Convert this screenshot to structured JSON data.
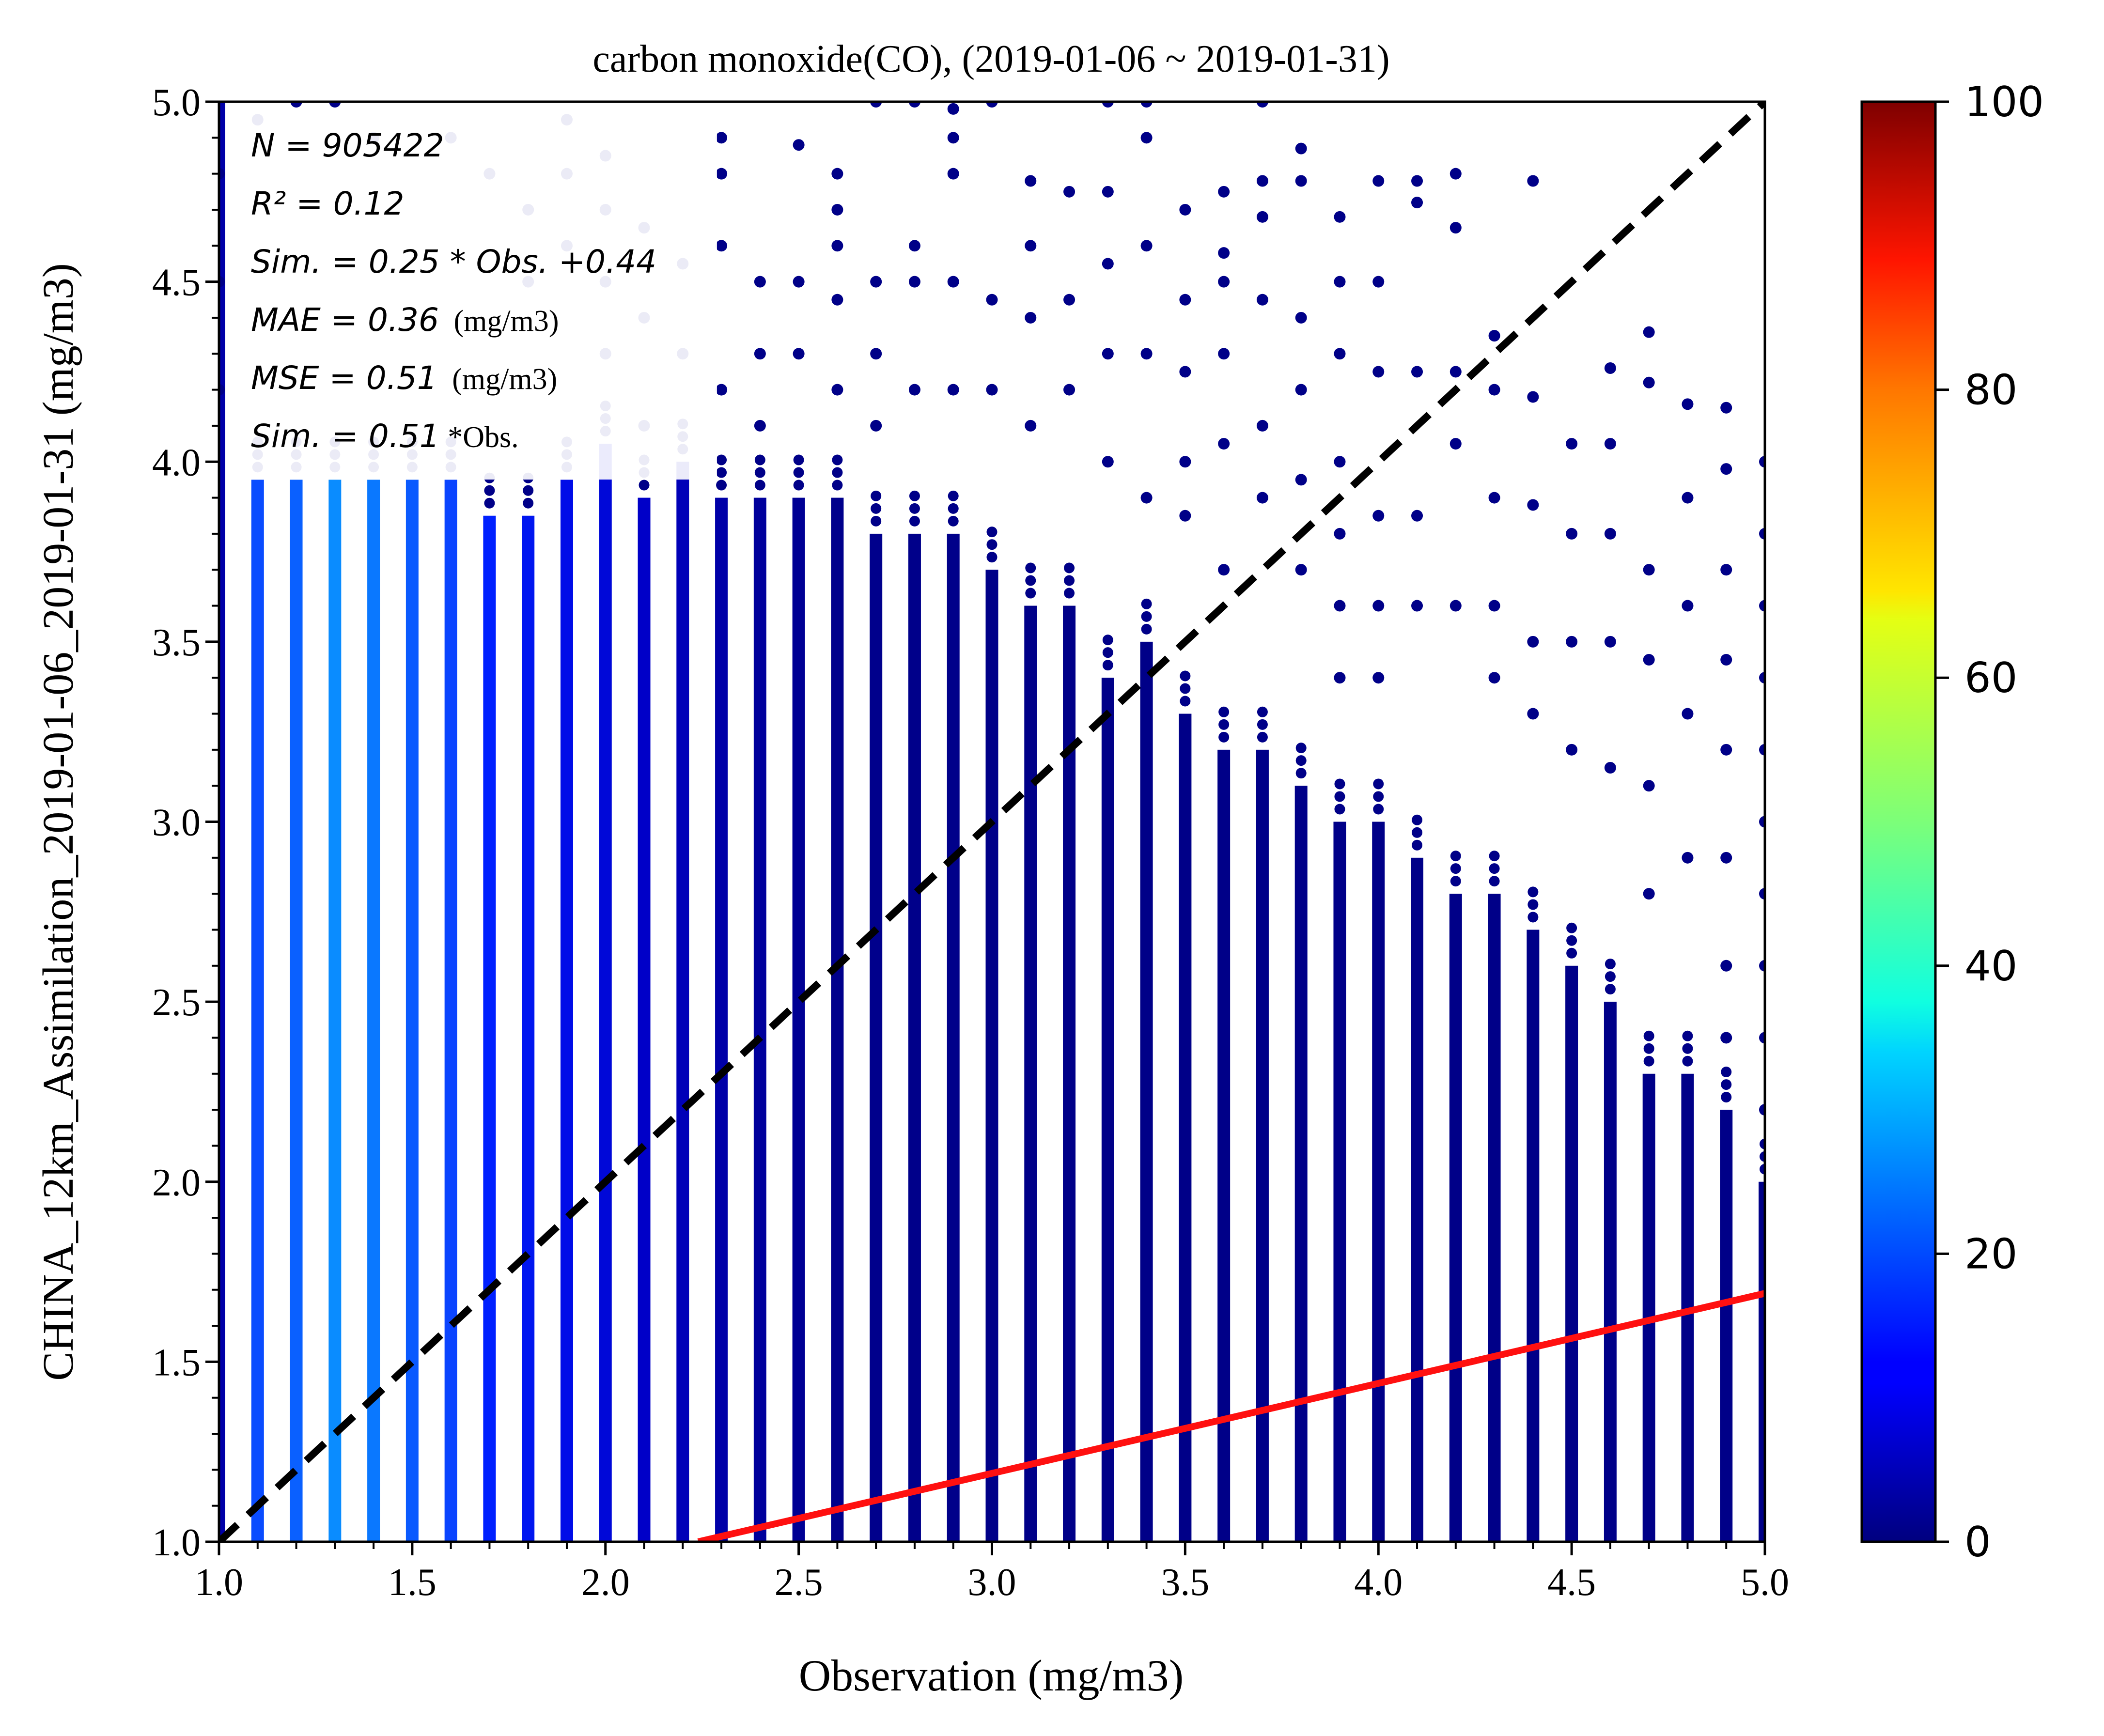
{
  "chart_data": {
    "type": "scatter",
    "title": "carbon monoxide(CO), (2019-01-06 ~ 2019-01-31)",
    "xlabel": "Observation (mg/m3)",
    "ylabel": "CHINA_12km_Assimilation_2019-01-06_2019-01-31 (mg/m3)",
    "xlim": [
      1.0,
      5.0
    ],
    "ylim": [
      1.0,
      5.0
    ],
    "x_ticks": [
      "1.0",
      "1.5",
      "2.0",
      "2.5",
      "3.0",
      "3.5",
      "4.0",
      "4.5",
      "5.0"
    ],
    "y_ticks": [
      "1.0",
      "1.5",
      "2.0",
      "2.5",
      "3.0",
      "3.5",
      "4.0",
      "4.5",
      "5.0"
    ],
    "grid": false,
    "stats": {
      "n": "N = 905422",
      "r2": "R² = 0.12",
      "fit": "Sim. = 0.25 * Obs. +0.44",
      "mae_label": "MAE = 0.36",
      "mae_unit": "(mg/m3)",
      "mse_label": "MSE = 0.51",
      "mse_unit": "(mg/m3)",
      "ratio_label": "Sim. = 0.51",
      "ratio_unit": "*Obs."
    },
    "reference_line": {
      "style": "dashed",
      "color": "#000000",
      "from": [
        1.0,
        1.0
      ],
      "to": [
        5.0,
        5.0
      ]
    },
    "fit_line": {
      "color": "#ff1010",
      "slope": 0.25,
      "intercept": 0.44
    },
    "colorbar": {
      "min": 0,
      "max": 100,
      "ticks": [
        "0",
        "20",
        "40",
        "60",
        "80",
        "100"
      ],
      "colormap": "jet"
    },
    "columns": [
      {
        "x": 1.0,
        "dense_top": 5.0,
        "color": "#0000a8"
      },
      {
        "x": 1.1,
        "dense_top": 3.95,
        "color": "#0a4cff"
      },
      {
        "x": 1.2,
        "dense_top": 3.95,
        "color": "#0a60ff"
      },
      {
        "x": 1.3,
        "dense_top": 3.95,
        "color": "#0a8cff"
      },
      {
        "x": 1.4,
        "dense_top": 3.95,
        "color": "#0a78ff"
      },
      {
        "x": 1.5,
        "dense_top": 3.95,
        "color": "#0a5aff"
      },
      {
        "x": 1.6,
        "dense_top": 3.95,
        "color": "#0a44ff"
      },
      {
        "x": 1.7,
        "dense_top": 3.85,
        "color": "#0020ff"
      },
      {
        "x": 1.8,
        "dense_top": 3.85,
        "color": "#0016f0"
      },
      {
        "x": 1.9,
        "dense_top": 3.95,
        "color": "#000ce8"
      },
      {
        "x": 2.0,
        "dense_top": 4.05,
        "color": "#0008d8"
      },
      {
        "x": 2.1,
        "dense_top": 3.9,
        "color": "#0000c8"
      },
      {
        "x": 2.2,
        "dense_top": 4.0,
        "color": "#0000b8"
      },
      {
        "x": 2.3,
        "dense_top": 3.9,
        "color": "#0000a8"
      },
      {
        "x": 2.4,
        "dense_top": 3.9,
        "color": "#00009c"
      },
      {
        "x": 2.5,
        "dense_top": 3.9,
        "color": "#000094"
      },
      {
        "x": 2.6,
        "dense_top": 3.9,
        "color": "#00008c"
      },
      {
        "x": 2.7,
        "dense_top": 3.8,
        "color": "#00008c"
      },
      {
        "x": 2.8,
        "dense_top": 3.8,
        "color": "#00008a"
      },
      {
        "x": 2.9,
        "dense_top": 3.8,
        "color": "#00008a"
      },
      {
        "x": 3.0,
        "dense_top": 3.7,
        "color": "#000088"
      },
      {
        "x": 3.1,
        "dense_top": 3.6,
        "color": "#000088"
      },
      {
        "x": 3.2,
        "dense_top": 3.6,
        "color": "#000088"
      },
      {
        "x": 3.3,
        "dense_top": 3.4,
        "color": "#000088"
      },
      {
        "x": 3.4,
        "dense_top": 3.5,
        "color": "#000088"
      },
      {
        "x": 3.5,
        "dense_top": 3.3,
        "color": "#000088"
      },
      {
        "x": 3.6,
        "dense_top": 3.2,
        "color": "#000088"
      },
      {
        "x": 3.7,
        "dense_top": 3.2,
        "color": "#000088"
      },
      {
        "x": 3.8,
        "dense_top": 3.1,
        "color": "#000088"
      },
      {
        "x": 3.9,
        "dense_top": 3.0,
        "color": "#000088"
      },
      {
        "x": 4.0,
        "dense_top": 3.0,
        "color": "#000088"
      },
      {
        "x": 4.1,
        "dense_top": 2.9,
        "color": "#000088"
      },
      {
        "x": 4.2,
        "dense_top": 2.8,
        "color": "#000088"
      },
      {
        "x": 4.3,
        "dense_top": 2.8,
        "color": "#000088"
      },
      {
        "x": 4.4,
        "dense_top": 2.7,
        "color": "#000088"
      },
      {
        "x": 4.5,
        "dense_top": 2.6,
        "color": "#000088"
      },
      {
        "x": 4.6,
        "dense_top": 2.5,
        "color": "#000088"
      },
      {
        "x": 4.7,
        "dense_top": 2.3,
        "color": "#000088"
      },
      {
        "x": 4.8,
        "dense_top": 2.3,
        "color": "#000088"
      },
      {
        "x": 4.9,
        "dense_top": 2.2,
        "color": "#000088"
      },
      {
        "x": 5.0,
        "dense_top": 2.0,
        "color": "#000088"
      }
    ],
    "scattered_points": [
      [
        1.0,
        4.2
      ],
      [
        1.0,
        4.5
      ],
      [
        1.0,
        4.8
      ],
      [
        1.1,
        4.95
      ],
      [
        1.2,
        5.0
      ],
      [
        1.3,
        5.0
      ],
      [
        1.4,
        4.9
      ],
      [
        1.6,
        4.9
      ],
      [
        1.7,
        4.8
      ],
      [
        1.8,
        4.7
      ],
      [
        1.8,
        4.5
      ],
      [
        1.9,
        4.95
      ],
      [
        1.9,
        4.8
      ],
      [
        1.9,
        4.6
      ],
      [
        2.0,
        4.85
      ],
      [
        2.0,
        4.7
      ],
      [
        2.0,
        4.5
      ],
      [
        2.0,
        4.3
      ],
      [
        2.1,
        4.65
      ],
      [
        2.1,
        4.4
      ],
      [
        2.1,
        4.1
      ],
      [
        2.2,
        4.55
      ],
      [
        2.2,
        4.3
      ],
      [
        2.3,
        4.9
      ],
      [
        2.3,
        4.8
      ],
      [
        2.3,
        4.6
      ],
      [
        2.3,
        4.2
      ],
      [
        2.4,
        4.5
      ],
      [
        2.4,
        4.3
      ],
      [
        2.4,
        4.1
      ],
      [
        2.5,
        4.88
      ],
      [
        2.5,
        4.5
      ],
      [
        2.5,
        4.3
      ],
      [
        2.6,
        4.8
      ],
      [
        2.6,
        4.7
      ],
      [
        2.6,
        4.6
      ],
      [
        2.6,
        4.45
      ],
      [
        2.6,
        4.2
      ],
      [
        2.7,
        5.0
      ],
      [
        2.7,
        4.5
      ],
      [
        2.7,
        4.3
      ],
      [
        2.7,
        4.1
      ],
      [
        2.8,
        5.0
      ],
      [
        2.8,
        4.6
      ],
      [
        2.8,
        4.5
      ],
      [
        2.8,
        4.2
      ],
      [
        2.9,
        4.98
      ],
      [
        2.9,
        4.9
      ],
      [
        2.9,
        4.8
      ],
      [
        2.9,
        4.5
      ],
      [
        2.9,
        4.2
      ],
      [
        3.0,
        5.0
      ],
      [
        3.0,
        4.45
      ],
      [
        3.0,
        4.2
      ],
      [
        3.1,
        4.78
      ],
      [
        3.1,
        4.6
      ],
      [
        3.1,
        4.4
      ],
      [
        3.1,
        4.1
      ],
      [
        3.2,
        4.75
      ],
      [
        3.2,
        4.45
      ],
      [
        3.2,
        4.2
      ],
      [
        3.3,
        5.0
      ],
      [
        3.3,
        4.75
      ],
      [
        3.3,
        4.55
      ],
      [
        3.3,
        4.3
      ],
      [
        3.3,
        4.0
      ],
      [
        3.4,
        5.0
      ],
      [
        3.4,
        4.9
      ],
      [
        3.4,
        4.6
      ],
      [
        3.4,
        4.3
      ],
      [
        3.4,
        3.9
      ],
      [
        3.5,
        4.7
      ],
      [
        3.5,
        4.45
      ],
      [
        3.5,
        4.25
      ],
      [
        3.5,
        4.0
      ],
      [
        3.5,
        3.85
      ],
      [
        3.6,
        4.75
      ],
      [
        3.6,
        4.58
      ],
      [
        3.6,
        4.5
      ],
      [
        3.6,
        4.3
      ],
      [
        3.6,
        4.05
      ],
      [
        3.6,
        3.7
      ],
      [
        3.7,
        5.0
      ],
      [
        3.7,
        4.78
      ],
      [
        3.7,
        4.68
      ],
      [
        3.7,
        4.45
      ],
      [
        3.7,
        4.1
      ],
      [
        3.7,
        3.9
      ],
      [
        3.8,
        4.87
      ],
      [
        3.8,
        4.78
      ],
      [
        3.8,
        4.4
      ],
      [
        3.8,
        4.2
      ],
      [
        3.8,
        3.95
      ],
      [
        3.8,
        3.7
      ],
      [
        3.9,
        4.68
      ],
      [
        3.9,
        4.5
      ],
      [
        3.9,
        4.3
      ],
      [
        3.9,
        4.0
      ],
      [
        3.9,
        3.8
      ],
      [
        3.9,
        3.6
      ],
      [
        3.9,
        3.4
      ],
      [
        4.0,
        4.78
      ],
      [
        4.0,
        4.5
      ],
      [
        4.0,
        4.25
      ],
      [
        4.0,
        3.85
      ],
      [
        4.0,
        3.6
      ],
      [
        4.0,
        3.4
      ],
      [
        4.1,
        4.78
      ],
      [
        4.1,
        4.72
      ],
      [
        4.1,
        4.25
      ],
      [
        4.1,
        3.85
      ],
      [
        4.1,
        3.6
      ],
      [
        4.2,
        4.8
      ],
      [
        4.2,
        4.65
      ],
      [
        4.2,
        4.25
      ],
      [
        4.2,
        4.05
      ],
      [
        4.2,
        3.6
      ],
      [
        4.3,
        4.35
      ],
      [
        4.3,
        4.2
      ],
      [
        4.3,
        3.9
      ],
      [
        4.3,
        3.6
      ],
      [
        4.3,
        3.4
      ],
      [
        4.4,
        4.78
      ],
      [
        4.4,
        4.18
      ],
      [
        4.4,
        3.88
      ],
      [
        4.4,
        3.5
      ],
      [
        4.4,
        3.3
      ],
      [
        4.5,
        4.05
      ],
      [
        4.5,
        3.8
      ],
      [
        4.5,
        3.5
      ],
      [
        4.5,
        3.2
      ],
      [
        4.6,
        4.26
      ],
      [
        4.6,
        4.05
      ],
      [
        4.6,
        3.8
      ],
      [
        4.6,
        3.5
      ],
      [
        4.6,
        3.15
      ],
      [
        4.7,
        4.36
      ],
      [
        4.7,
        4.22
      ],
      [
        4.7,
        3.7
      ],
      [
        4.7,
        3.45
      ],
      [
        4.7,
        3.1
      ],
      [
        4.7,
        2.8
      ],
      [
        4.8,
        4.16
      ],
      [
        4.8,
        3.9
      ],
      [
        4.8,
        3.6
      ],
      [
        4.8,
        3.3
      ],
      [
        4.8,
        2.9
      ],
      [
        4.9,
        4.15
      ],
      [
        4.9,
        3.98
      ],
      [
        4.9,
        3.7
      ],
      [
        4.9,
        3.45
      ],
      [
        4.9,
        3.2
      ],
      [
        4.9,
        2.9
      ],
      [
        4.9,
        2.6
      ],
      [
        4.9,
        2.4
      ],
      [
        5.0,
        4.0
      ],
      [
        5.0,
        3.8
      ],
      [
        5.0,
        3.6
      ],
      [
        5.0,
        3.4
      ],
      [
        5.0,
        3.2
      ],
      [
        5.0,
        3.0
      ],
      [
        5.0,
        2.8
      ],
      [
        5.0,
        2.6
      ],
      [
        5.0,
        2.4
      ],
      [
        5.0,
        2.2
      ]
    ]
  }
}
